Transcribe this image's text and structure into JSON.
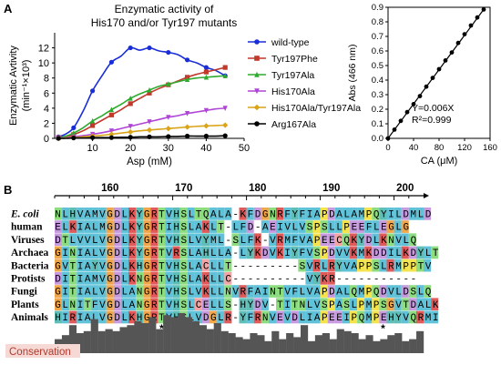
{
  "figure": {
    "panel_a": "A",
    "panel_b": "B"
  },
  "chart_data": [
    {
      "type": "scatter",
      "title_line1": "Enzymatic activity of",
      "title_line2": "His170 and/or Tyr197 mutants",
      "xlabel": "Asp (mM)",
      "ylabel_line1": "Enzymatic Avtivity",
      "ylabel_line2": "(min⁻¹×10³)",
      "xlim": [
        0,
        50
      ],
      "ylim": [
        0,
        14
      ],
      "xticks": [
        "10",
        "20",
        "30",
        "40",
        "50"
      ],
      "yticks": [
        "0",
        "2",
        "4",
        "6",
        "8",
        "10",
        "12"
      ],
      "x_values": [
        1,
        3,
        5,
        7.5,
        10,
        12.5,
        15,
        17.5,
        20,
        22.5,
        25,
        27.5,
        30,
        32.5,
        35,
        37.5,
        40,
        42.5,
        45
      ],
      "legend_position": "right",
      "series": [
        {
          "name": "wild-type",
          "color": "#1a2ed8",
          "marker": "circle",
          "values": [
            0.2,
            0.6,
            1.4,
            3.6,
            6.3,
            8.3,
            10.1,
            10.9,
            12.0,
            11.7,
            12.0,
            11.6,
            11.4,
            11.1,
            10.4,
            10.0,
            9.4,
            9.0,
            8.3
          ]
        },
        {
          "name": "Tyr197Phe",
          "color": "#c0392b",
          "marker": "square",
          "values": [
            0.1,
            0.2,
            0.5,
            1.0,
            1.7,
            2.4,
            3.1,
            3.8,
            4.6,
            5.3,
            6.0,
            6.6,
            7.1,
            7.6,
            8.1,
            8.5,
            8.8,
            9.1,
            9.4
          ]
        },
        {
          "name": "Tyr197Ala",
          "color": "#2eaa2e",
          "marker": "triangle-up",
          "values": [
            0.1,
            0.3,
            0.7,
            1.4,
            2.3,
            3.0,
            3.8,
            4.5,
            5.3,
            5.9,
            6.4,
            6.9,
            7.2,
            7.5,
            7.8,
            8.0,
            8.1,
            8.2,
            8.3
          ]
        },
        {
          "name": "His170Ala",
          "color": "#b044d6",
          "marker": "triangle-down",
          "values": [
            0.05,
            0.1,
            0.2,
            0.35,
            0.55,
            0.75,
            1.0,
            1.3,
            1.6,
            1.9,
            2.2,
            2.5,
            2.8,
            3.0,
            3.3,
            3.5,
            3.7,
            3.9,
            4.0
          ]
        },
        {
          "name": "His170Ala/Tyr197Ala",
          "color": "#d9a418",
          "marker": "diamond",
          "values": [
            0.0,
            0.05,
            0.1,
            0.2,
            0.3,
            0.4,
            0.55,
            0.7,
            0.85,
            1.0,
            1.1,
            1.2,
            1.3,
            1.4,
            1.5,
            1.6,
            1.65,
            1.7,
            1.75
          ]
        },
        {
          "name": "Arg167Ala",
          "color": "#000000",
          "marker": "circle",
          "values": [
            0.0,
            0.0,
            0.05,
            0.05,
            0.1,
            0.1,
            0.1,
            0.15,
            0.15,
            0.2,
            0.2,
            0.2,
            0.25,
            0.25,
            0.3,
            0.3,
            0.3,
            0.3,
            0.35
          ]
        }
      ]
    },
    {
      "type": "scatter",
      "xlabel": "CA (μM)",
      "ylabel": "Abs (466 nm)",
      "xlim": [
        0,
        160
      ],
      "ylim": [
        0,
        0.9
      ],
      "xticks": [
        "0",
        "40",
        "80",
        "120",
        "160"
      ],
      "yticks": [
        "0.0",
        "0.1",
        "0.2",
        "0.3",
        "0.4",
        "0.5",
        "0.6",
        "0.7",
        "0.8",
        "0.9"
      ],
      "annotation_line1": "Y=0.006X",
      "annotation_line2": "R²=0.999",
      "series": [
        {
          "color": "#000000",
          "marker": "circle",
          "x": [
            0,
            10,
            20,
            30,
            40,
            50,
            60,
            70,
            80,
            90,
            100,
            110,
            120,
            130,
            140,
            150
          ],
          "y": [
            0.0,
            0.06,
            0.12,
            0.18,
            0.235,
            0.29,
            0.355,
            0.415,
            0.475,
            0.535,
            0.59,
            0.655,
            0.715,
            0.775,
            0.83,
            0.885
          ]
        }
      ]
    }
  ],
  "alignment": {
    "ruler_labels": [
      "160",
      "170",
      "180",
      "190",
      "200"
    ],
    "rows": [
      {
        "name": "E. coli",
        "italic": true,
        "seq": "NLHVAMVGDLKYGRTVHSLTQALA-KFDGNRFYFIAPDALAMPQYILDMLD"
      },
      {
        "name": "human",
        "seq": "ELKIALMGDLKYGRTIHSLAKLT-LFD-AEIVLVSPSLLPEEFLEGLG"
      },
      {
        "name": "Viruses",
        "seq": "DTLVVLVGDLKYGRTVHSLVYML-SLFK-VRMFVAPEECQKYDLKNVLQ"
      },
      {
        "name": "Archaea",
        "seq": "GINIALVGDLKYGRTVRSLAHLLA-LYKDVKIYFVSPDVVKMKDDILKDYLT"
      },
      {
        "name": "Bacteria",
        "seq": "GVTIAYVGDLKHGRTVHSLACLLT---------SVRLRYVAPPSLRMPPTV"
      },
      {
        "name": "Protists",
        "seq": "DITIAMVGDLKNGRTVHSLAKLLC----------VYKR-----------"
      },
      {
        "name": "Fungi",
        "seq": "GITIALVGDLANGRTVHSLVKLLNVRFAINTVFLVAPDALQMPQDVLDSLQ"
      },
      {
        "name": "Plants",
        "seq": "GLNITFVGDLANGRTVHSLCELLS-HYDV-TITNLVSPASLPMPSGVTDALK"
      },
      {
        "name": "Animals",
        "seq": "HIRIALVGDLKHGRTVHSLVDGLR-YFRNVEVDLIAPEEIPQMPEHYVQRMI"
      }
    ],
    "asterisk": "*",
    "conservation_label": "Conservation",
    "conservation_values": [
      0.35,
      0.45,
      0.7,
      0.5,
      0.55,
      0.85,
      0.55,
      0.6,
      0.55,
      0.65,
      0.7,
      0.8,
      0.75,
      0.9,
      0.6,
      0.95,
      0.9,
      1.0,
      0.9,
      0.8,
      0.7,
      0.6,
      0.75,
      0.55,
      0.5,
      0.4,
      0.35,
      0.5,
      0.45,
      0.3,
      0.55,
      0.35,
      0.5,
      0.4,
      0.7,
      0.3,
      0.45,
      0.5,
      0.35,
      0.6,
      0.55,
      0.5,
      0.35,
      0.45,
      0.3,
      0.35,
      0.45,
      0.5,
      0.3,
      0.35,
      0.55
    ]
  }
}
